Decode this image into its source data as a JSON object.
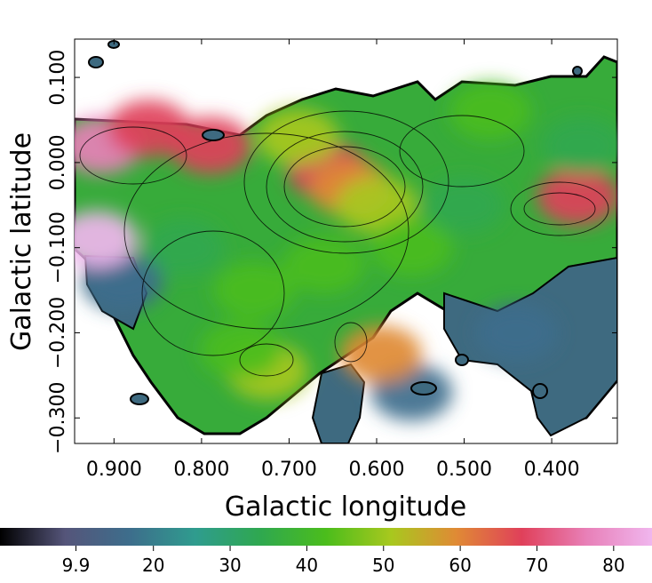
{
  "chart_data": {
    "type": "heatmap",
    "title": "",
    "xlabel": "Galactic longitude",
    "ylabel": "Galactic latitude",
    "xlim": [
      0.945,
      0.325
    ],
    "ylim": [
      -0.33,
      0.145
    ],
    "x_ticks": [
      {
        "value": 0.9,
        "label": "0.900"
      },
      {
        "value": 0.8,
        "label": "0.800"
      },
      {
        "value": 0.7,
        "label": "0.700"
      },
      {
        "value": 0.6,
        "label": "0.600"
      },
      {
        "value": 0.5,
        "label": "0.500"
      },
      {
        "value": 0.4,
        "label": "0.400"
      }
    ],
    "y_ticks": [
      {
        "value": 0.1,
        "label": "0.100"
      },
      {
        "value": 0.0,
        "label": "0.000"
      },
      {
        "value": -0.1,
        "label": "−0.100"
      },
      {
        "value": -0.2,
        "label": "−0.200"
      },
      {
        "value": -0.3,
        "label": "−0.300"
      }
    ],
    "colorbar": {
      "range": [
        0,
        85
      ],
      "ticks": [
        {
          "value": 9.9,
          "label": "9.9"
        },
        {
          "value": 20,
          "label": "20"
        },
        {
          "value": 30,
          "label": "30"
        },
        {
          "value": 40,
          "label": "40"
        },
        {
          "value": 50,
          "label": "50"
        },
        {
          "value": 60,
          "label": "60"
        },
        {
          "value": 70,
          "label": "70"
        },
        {
          "value": 80,
          "label": "80"
        }
      ],
      "colors": [
        "#000000",
        "#55557a",
        "#3d6e8c",
        "#2f9c8e",
        "#2fa84f",
        "#4bbd1c",
        "#a8c81e",
        "#e08a35",
        "#e0405a",
        "#e880b8",
        "#f0b6ee"
      ]
    },
    "regions": [
      {
        "l": 0.915,
        "b": 0.02,
        "value": 78
      },
      {
        "l": 0.86,
        "b": 0.04,
        "value": 68
      },
      {
        "l": 0.79,
        "b": 0.02,
        "value": 64
      },
      {
        "l": 0.655,
        "b": -0.01,
        "value": 65
      },
      {
        "l": 0.63,
        "b": -0.03,
        "value": 62
      },
      {
        "l": 0.69,
        "b": 0.03,
        "value": 50
      },
      {
        "l": 0.6,
        "b": -0.05,
        "value": 48
      },
      {
        "l": 0.66,
        "b": -0.12,
        "value": 44
      },
      {
        "l": 0.74,
        "b": -0.15,
        "value": 40
      },
      {
        "l": 0.82,
        "b": -0.1,
        "value": 38
      },
      {
        "l": 0.56,
        "b": -0.1,
        "value": 40
      },
      {
        "l": 0.5,
        "b": -0.05,
        "value": 38
      },
      {
        "l": 0.47,
        "b": 0.06,
        "value": 40
      },
      {
        "l": 0.37,
        "b": -0.04,
        "value": 72
      },
      {
        "l": 0.365,
        "b": 0.02,
        "value": 32
      },
      {
        "l": 0.44,
        "b": -0.2,
        "value": 20
      },
      {
        "l": 0.56,
        "b": -0.27,
        "value": 18
      },
      {
        "l": 0.89,
        "b": -0.14,
        "value": 18
      },
      {
        "l": 0.595,
        "b": -0.225,
        "value": 62
      },
      {
        "l": 0.725,
        "b": -0.245,
        "value": 55
      },
      {
        "l": 0.755,
        "b": -0.22,
        "value": 44
      },
      {
        "l": 0.92,
        "b": -0.09,
        "value": 82
      }
    ]
  }
}
